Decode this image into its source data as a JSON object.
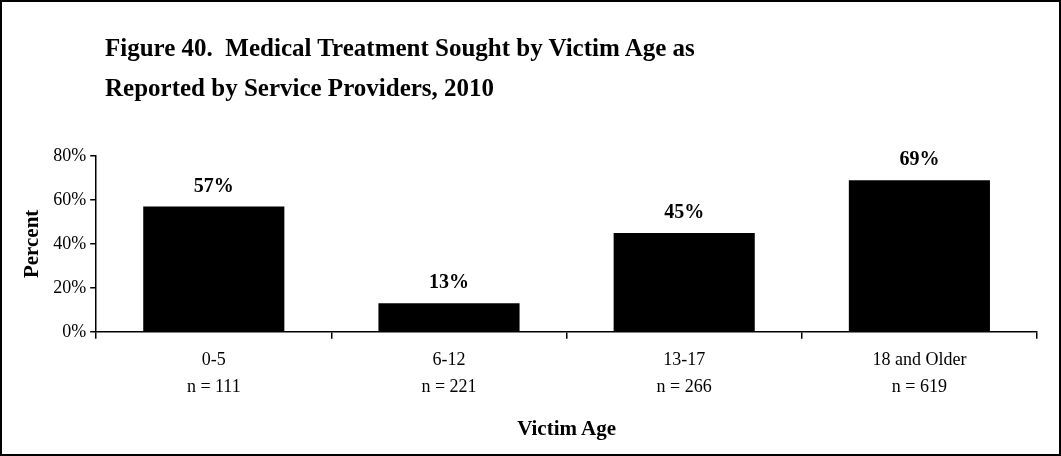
{
  "chart_data": {
    "type": "bar",
    "title": "Figure 40.  Medical Treatment Sought by Victim Age as\nReported by Service Providers, 2010",
    "xlabel": "Victim Age",
    "ylabel": "Percent",
    "categories": [
      "0-5\nn = 111",
      "6-12\nn = 221",
      "13-17\nn = 266",
      "18 and Older\nn = 619"
    ],
    "values": [
      57,
      13,
      45,
      69
    ],
    "value_labels": [
      "57%",
      "13%",
      "45%",
      "69%"
    ],
    "color": "#000000",
    "ylim": [
      0,
      80
    ],
    "yticks": [
      {
        "value": 0,
        "label": "0%"
      },
      {
        "value": 20,
        "label": "20%"
      },
      {
        "value": 40,
        "label": "40%"
      },
      {
        "value": 60,
        "label": "60%"
      },
      {
        "value": 80,
        "label": "80%"
      }
    ],
    "grid": false,
    "legend": false
  }
}
